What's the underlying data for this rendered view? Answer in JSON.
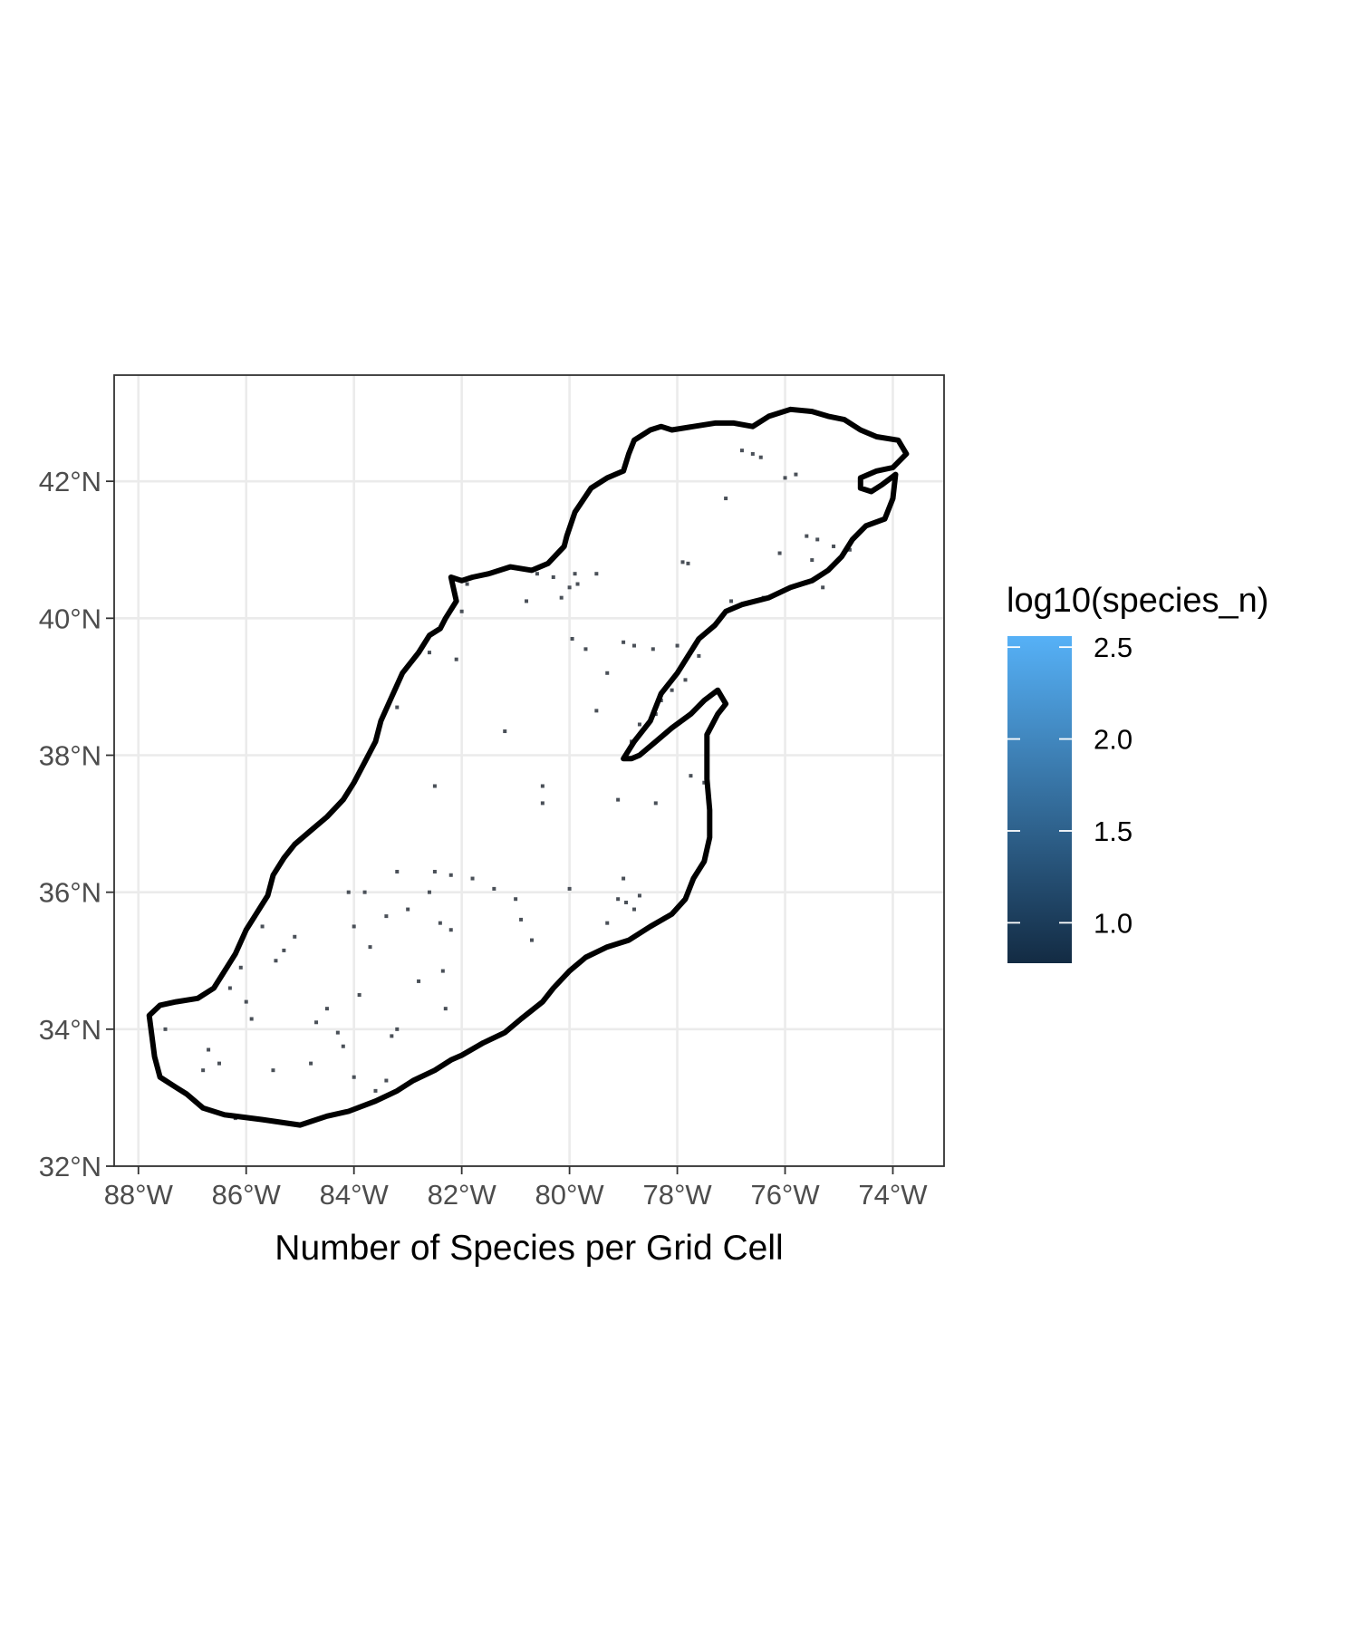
{
  "chart_data": {
    "type": "heatmap",
    "title": "",
    "xlabel": "Number of Species per Grid Cell",
    "ylabel": "",
    "xlim": [
      -88.45,
      -73.05
    ],
    "ylim": [
      32.0,
      43.55
    ],
    "x_ticks": [
      {
        "value": -88,
        "label": "88°W"
      },
      {
        "value": -86,
        "label": "86°W"
      },
      {
        "value": -84,
        "label": "84°W"
      },
      {
        "value": -82,
        "label": "82°W"
      },
      {
        "value": -80,
        "label": "80°W"
      },
      {
        "value": -78,
        "label": "78°W"
      },
      {
        "value": -76,
        "label": "76°W"
      },
      {
        "value": -74,
        "label": "74°W"
      }
    ],
    "y_ticks": [
      {
        "value": 32,
        "label": "32°N"
      },
      {
        "value": 34,
        "label": "34°N"
      },
      {
        "value": 36,
        "label": "36°N"
      },
      {
        "value": 38,
        "label": "38°N"
      },
      {
        "value": 40,
        "label": "40°N"
      },
      {
        "value": 42,
        "label": "42°N"
      }
    ],
    "grid": true,
    "legend": {
      "title": "log10(species_n)",
      "placement": "right",
      "range": [
        0.78,
        2.56
      ],
      "colors": [
        "#132b43",
        "#56b1f7"
      ],
      "breaks": [
        {
          "value": 1.0,
          "label": "1.0"
        },
        {
          "value": 1.5,
          "label": "1.5"
        },
        {
          "value": 2.0,
          "label": "2.0"
        },
        {
          "value": 2.5,
          "label": "2.5"
        }
      ]
    },
    "boundary_color": "#000000",
    "cell_color": "#4a5058",
    "boundary": [
      [
        -87.7,
        33.6
      ],
      [
        -87.6,
        33.3
      ],
      [
        -87.3,
        33.15
      ],
      [
        -87.1,
        33.05
      ],
      [
        -86.8,
        32.85
      ],
      [
        -86.4,
        32.75
      ],
      [
        -85.7,
        32.68
      ],
      [
        -85.0,
        32.6
      ],
      [
        -84.5,
        32.73
      ],
      [
        -84.1,
        32.8
      ],
      [
        -83.6,
        32.95
      ],
      [
        -83.2,
        33.1
      ],
      [
        -82.9,
        33.25
      ],
      [
        -82.5,
        33.4
      ],
      [
        -82.2,
        33.55
      ],
      [
        -82.0,
        33.62
      ],
      [
        -81.6,
        33.8
      ],
      [
        -81.2,
        33.95
      ],
      [
        -80.9,
        34.15
      ],
      [
        -80.5,
        34.4
      ],
      [
        -80.3,
        34.6
      ],
      [
        -80.0,
        34.85
      ],
      [
        -79.7,
        35.05
      ],
      [
        -79.3,
        35.2
      ],
      [
        -78.9,
        35.3
      ],
      [
        -78.5,
        35.5
      ],
      [
        -78.1,
        35.68
      ],
      [
        -77.85,
        35.9
      ],
      [
        -77.7,
        36.2
      ],
      [
        -77.5,
        36.45
      ],
      [
        -77.4,
        36.8
      ],
      [
        -77.4,
        37.2
      ],
      [
        -77.45,
        37.65
      ],
      [
        -77.45,
        38.05
      ],
      [
        -77.45,
        38.3
      ],
      [
        -77.25,
        38.6
      ],
      [
        -77.1,
        38.75
      ],
      [
        -77.25,
        38.95
      ],
      [
        -77.5,
        38.8
      ],
      [
        -77.75,
        38.6
      ],
      [
        -78.1,
        38.4
      ],
      [
        -78.4,
        38.2
      ],
      [
        -78.7,
        38.0
      ],
      [
        -78.85,
        37.95
      ],
      [
        -79.0,
        37.95
      ],
      [
        -78.8,
        38.2
      ],
      [
        -78.5,
        38.5
      ],
      [
        -78.3,
        38.9
      ],
      [
        -78.0,
        39.2
      ],
      [
        -77.8,
        39.45
      ],
      [
        -77.6,
        39.7
      ],
      [
        -77.3,
        39.9
      ],
      [
        -77.1,
        40.1
      ],
      [
        -76.8,
        40.2
      ],
      [
        -76.3,
        40.3
      ],
      [
        -75.9,
        40.45
      ],
      [
        -75.5,
        40.55
      ],
      [
        -75.2,
        40.7
      ],
      [
        -74.95,
        40.9
      ],
      [
        -74.75,
        41.15
      ],
      [
        -74.5,
        41.35
      ],
      [
        -74.15,
        41.45
      ],
      [
        -74.0,
        41.75
      ],
      [
        -73.95,
        42.1
      ],
      [
        -74.2,
        41.95
      ],
      [
        -74.4,
        41.85
      ],
      [
        -74.6,
        41.9
      ],
      [
        -74.6,
        42.05
      ],
      [
        -74.3,
        42.15
      ],
      [
        -74.0,
        42.2
      ],
      [
        -73.75,
        42.4
      ],
      [
        -73.9,
        42.6
      ],
      [
        -74.3,
        42.65
      ],
      [
        -74.6,
        42.75
      ],
      [
        -74.9,
        42.9
      ],
      [
        -75.2,
        42.95
      ],
      [
        -75.5,
        43.02
      ],
      [
        -75.9,
        43.05
      ],
      [
        -76.3,
        42.95
      ],
      [
        -76.6,
        42.8
      ],
      [
        -76.95,
        42.85
      ],
      [
        -77.3,
        42.85
      ],
      [
        -77.7,
        42.8
      ],
      [
        -78.1,
        42.75
      ],
      [
        -78.3,
        42.8
      ],
      [
        -78.5,
        42.75
      ],
      [
        -78.8,
        42.6
      ],
      [
        -78.9,
        42.4
      ],
      [
        -79.0,
        42.15
      ],
      [
        -79.3,
        42.05
      ],
      [
        -79.6,
        41.9
      ],
      [
        -79.9,
        41.55
      ],
      [
        -80.05,
        41.2
      ],
      [
        -80.1,
        41.05
      ],
      [
        -80.4,
        40.8
      ],
      [
        -80.7,
        40.7
      ],
      [
        -81.1,
        40.75
      ],
      [
        -81.5,
        40.65
      ],
      [
        -81.8,
        40.6
      ],
      [
        -82.0,
        40.55
      ],
      [
        -82.2,
        40.6
      ],
      [
        -82.1,
        40.25
      ],
      [
        -82.3,
        40.0
      ],
      [
        -82.4,
        39.85
      ],
      [
        -82.6,
        39.75
      ],
      [
        -82.8,
        39.5
      ],
      [
        -83.1,
        39.2
      ],
      [
        -83.3,
        38.85
      ],
      [
        -83.5,
        38.5
      ],
      [
        -83.6,
        38.2
      ],
      [
        -83.8,
        37.9
      ],
      [
        -84.0,
        37.6
      ],
      [
        -84.2,
        37.35
      ],
      [
        -84.5,
        37.1
      ],
      [
        -84.8,
        36.9
      ],
      [
        -85.1,
        36.7
      ],
      [
        -85.3,
        36.5
      ],
      [
        -85.5,
        36.25
      ],
      [
        -85.6,
        35.95
      ],
      [
        -85.8,
        35.7
      ],
      [
        -86.0,
        35.45
      ],
      [
        -86.2,
        35.1
      ],
      [
        -86.4,
        34.85
      ],
      [
        -86.6,
        34.6
      ],
      [
        -86.9,
        34.45
      ],
      [
        -87.3,
        34.4
      ],
      [
        -87.6,
        34.35
      ],
      [
        -87.8,
        34.2
      ],
      [
        -87.7,
        33.6
      ]
    ],
    "cells": [
      [
        -76.8,
        42.45
      ],
      [
        -76.6,
        42.4
      ],
      [
        -76.45,
        42.35
      ],
      [
        -76.0,
        42.05
      ],
      [
        -75.8,
        42.1
      ],
      [
        -77.1,
        41.75
      ],
      [
        -75.6,
        41.2
      ],
      [
        -75.4,
        41.15
      ],
      [
        -75.1,
        41.05
      ],
      [
        -74.8,
        41.0
      ],
      [
        -76.1,
        40.95
      ],
      [
        -75.5,
        40.85
      ],
      [
        -75.3,
        40.45
      ],
      [
        -77.8,
        40.8
      ],
      [
        -77.9,
        40.82
      ],
      [
        -77.0,
        40.25
      ],
      [
        -76.4,
        40.3
      ],
      [
        -79.9,
        40.65
      ],
      [
        -79.85,
        40.5
      ],
      [
        -80.0,
        40.45
      ],
      [
        -80.15,
        40.3
      ],
      [
        -80.3,
        40.6
      ],
      [
        -80.6,
        40.65
      ],
      [
        -81.9,
        40.5
      ],
      [
        -82.0,
        40.1
      ],
      [
        -80.8,
        40.25
      ],
      [
        -79.5,
        40.65
      ],
      [
        -79.95,
        39.7
      ],
      [
        -79.7,
        39.55
      ],
      [
        -79.0,
        39.65
      ],
      [
        -78.8,
        39.6
      ],
      [
        -78.45,
        39.55
      ],
      [
        -78.0,
        39.6
      ],
      [
        -77.6,
        39.45
      ],
      [
        -77.85,
        39.1
      ],
      [
        -78.1,
        38.95
      ],
      [
        -78.3,
        38.8
      ],
      [
        -78.4,
        38.6
      ],
      [
        -78.7,
        38.45
      ],
      [
        -78.85,
        38.2
      ],
      [
        -79.5,
        38.65
      ],
      [
        -82.1,
        39.4
      ],
      [
        -82.6,
        39.5
      ],
      [
        -81.2,
        38.35
      ],
      [
        -83.2,
        38.7
      ],
      [
        -82.5,
        37.55
      ],
      [
        -80.5,
        37.3
      ],
      [
        -80.5,
        37.55
      ],
      [
        -79.1,
        37.35
      ],
      [
        -78.4,
        37.3
      ],
      [
        -77.75,
        37.7
      ],
      [
        -77.5,
        37.6
      ],
      [
        -82.5,
        36.3
      ],
      [
        -82.2,
        36.25
      ],
      [
        -81.8,
        36.2
      ],
      [
        -81.4,
        36.05
      ],
      [
        -80.0,
        36.05
      ],
      [
        -79.1,
        35.9
      ],
      [
        -78.95,
        35.85
      ],
      [
        -78.8,
        35.75
      ],
      [
        -78.7,
        35.95
      ],
      [
        -79.0,
        36.2
      ],
      [
        -79.3,
        35.55
      ],
      [
        -80.9,
        35.6
      ],
      [
        -80.7,
        35.3
      ],
      [
        -82.4,
        35.55
      ],
      [
        -82.2,
        35.45
      ],
      [
        -83.0,
        35.75
      ],
      [
        -83.4,
        35.65
      ],
      [
        -83.8,
        36.0
      ],
      [
        -84.1,
        36.0
      ],
      [
        -83.2,
        36.3
      ],
      [
        -82.6,
        36.0
      ],
      [
        -81.0,
        35.9
      ],
      [
        -84.0,
        35.5
      ],
      [
        -83.7,
        35.2
      ],
      [
        -85.1,
        35.35
      ],
      [
        -85.3,
        35.15
      ],
      [
        -85.45,
        35.0
      ],
      [
        -82.35,
        34.85
      ],
      [
        -82.8,
        34.7
      ],
      [
        -83.9,
        34.5
      ],
      [
        -84.5,
        34.3
      ],
      [
        -84.3,
        33.95
      ],
      [
        -84.2,
        33.75
      ],
      [
        -84.0,
        33.3
      ],
      [
        -83.4,
        33.25
      ],
      [
        -82.3,
        34.3
      ],
      [
        -83.3,
        33.9
      ],
      [
        -84.8,
        33.5
      ],
      [
        -85.5,
        33.4
      ],
      [
        -86.7,
        33.7
      ],
      [
        -86.5,
        33.5
      ],
      [
        -86.8,
        33.4
      ],
      [
        -86.0,
        34.4
      ],
      [
        -86.3,
        34.6
      ],
      [
        -86.1,
        34.9
      ],
      [
        -85.9,
        34.15
      ],
      [
        -87.5,
        34.0
      ],
      [
        -86.2,
        32.7
      ],
      [
        -83.95,
        32.85
      ],
      [
        -83.6,
        33.1
      ],
      [
        -84.7,
        34.1
      ],
      [
        -85.7,
        35.5
      ],
      [
        -83.2,
        34.0
      ],
      [
        -79.3,
        39.2
      ]
    ]
  }
}
